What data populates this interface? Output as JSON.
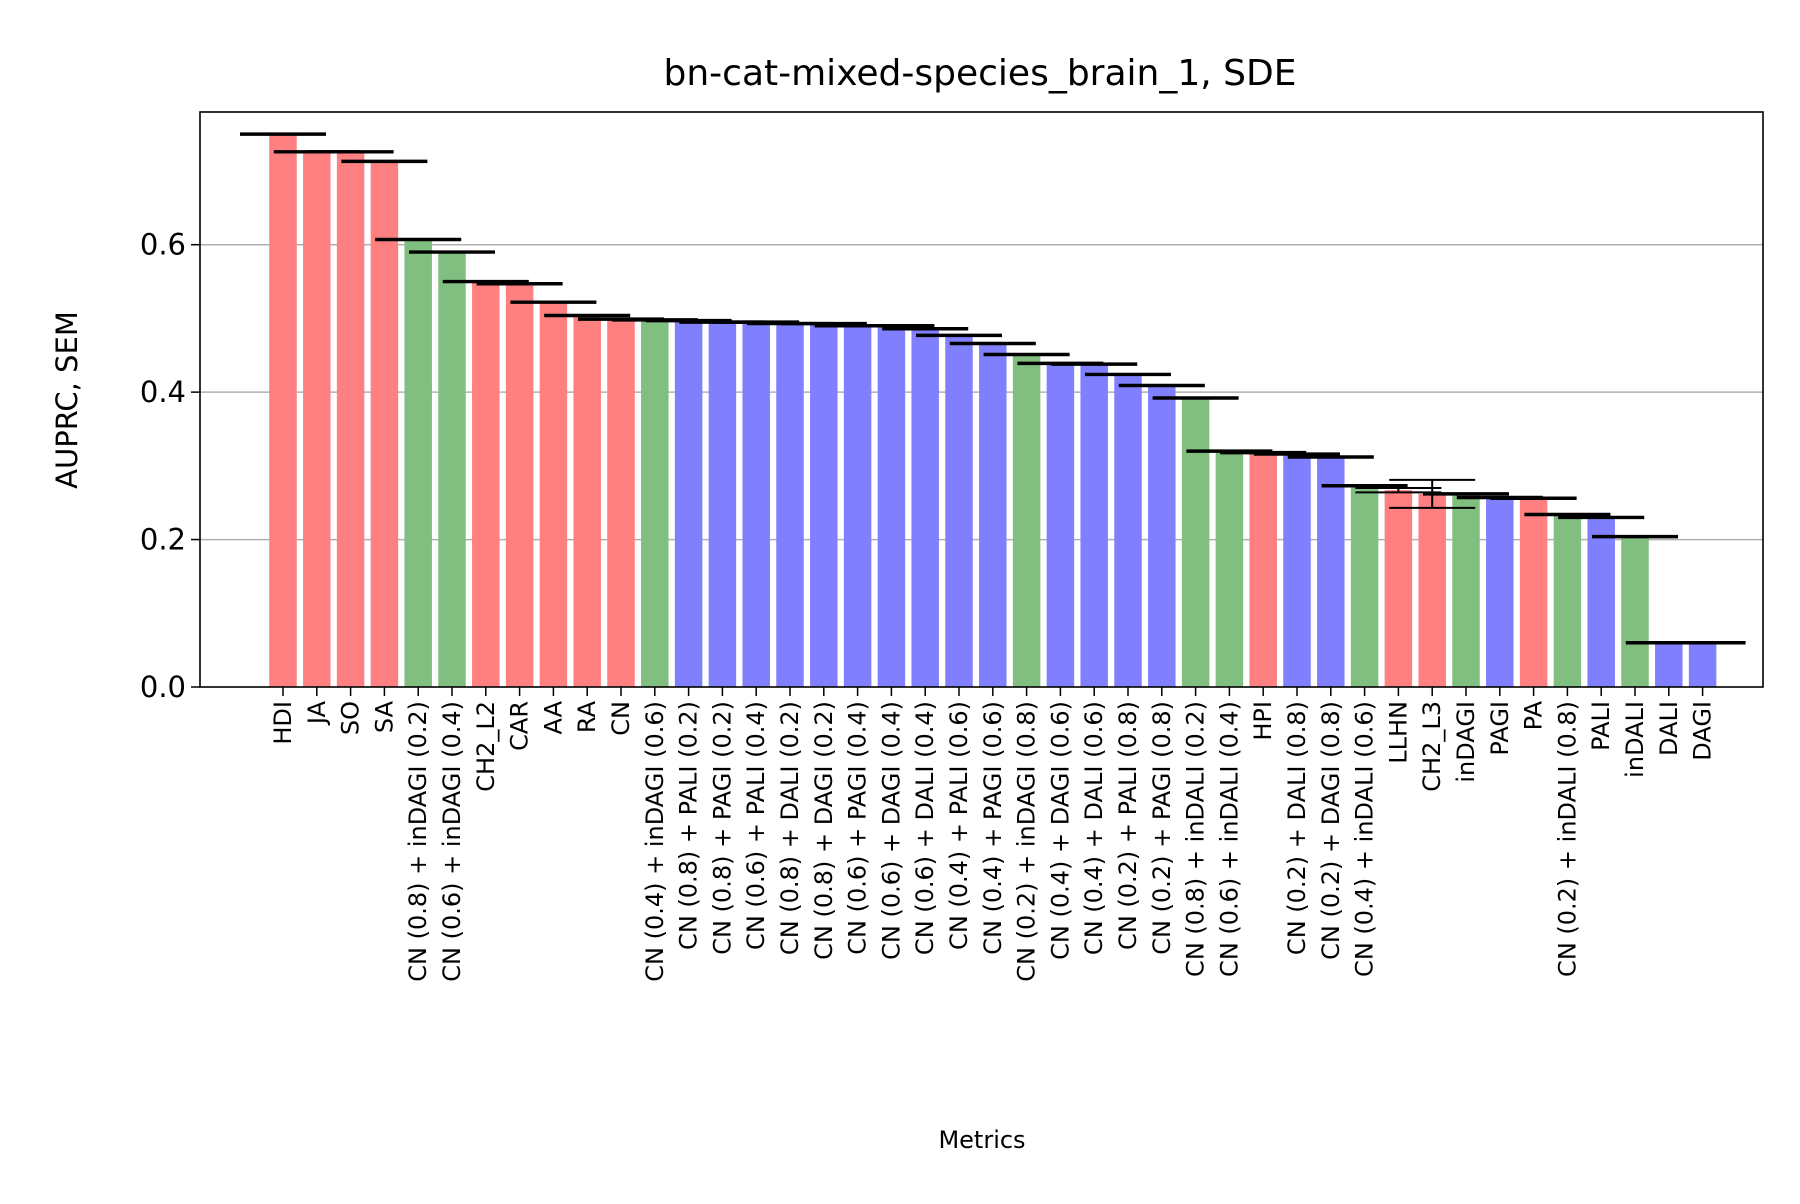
{
  "chart_data": {
    "type": "bar",
    "title": "bn-cat-mixed-species_brain_1, SDE",
    "xlabel": "Metrics",
    "ylabel": "AUPRC, SEM",
    "ylim": [
      0,
      0.78
    ],
    "yticks": [
      0.0,
      0.2,
      0.4,
      0.6
    ],
    "ytick_labels": [
      "0.0",
      "0.2",
      "0.4",
      "0.6"
    ],
    "grid": "y",
    "colors": {
      "red": "#ff8080",
      "green": "#80bf80",
      "blue": "#8080ff",
      "error": "#000000",
      "grid": "#b0b0b0"
    },
    "categories": [
      "HDI",
      "JA",
      "SO",
      "SA",
      "CN (0.8) + inDAGI (0.2)",
      "CN (0.6) + inDAGI (0.4)",
      "CH2_L2",
      "CAR",
      "AA",
      "RA",
      "CN",
      "CN (0.4) + inDAGI (0.6)",
      "CN (0.8) + PALI (0.2)",
      "CN (0.8) + PAGI (0.2)",
      "CN (0.6) + PALI (0.4)",
      "CN (0.8) + DALI (0.2)",
      "CN (0.8) + DAGI (0.2)",
      "CN (0.6) + PAGI (0.4)",
      "CN (0.6) + DAGI (0.4)",
      "CN (0.6) + DALI (0.4)",
      "CN (0.4) + PALI (0.6)",
      "CN (0.4) + PAGI (0.6)",
      "CN (0.2) + inDAGI (0.8)",
      "CN (0.4) + DAGI (0.6)",
      "CN (0.4) + DALI (0.6)",
      "CN (0.2) + PALI (0.8)",
      "CN (0.2) + PAGI (0.8)",
      "CN (0.8) + inDALI (0.2)",
      "CN (0.6) + inDALI (0.4)",
      "HPI",
      "CN (0.2) + DALI (0.8)",
      "CN (0.2) + DAGI (0.8)",
      "CN (0.4) + inDALI (0.6)",
      "LLHN",
      "CH2_L3",
      "inDAGI",
      "PAGI",
      "PA",
      "CN (0.2) + inDALI (0.8)",
      "PALI",
      "inDALI",
      "DALI",
      "DAGI"
    ],
    "values": [
      0.75,
      0.726,
      0.726,
      0.713,
      0.607,
      0.59,
      0.55,
      0.547,
      0.522,
      0.504,
      0.499,
      0.498,
      0.497,
      0.495,
      0.495,
      0.493,
      0.493,
      0.49,
      0.49,
      0.486,
      0.477,
      0.466,
      0.451,
      0.439,
      0.438,
      0.424,
      0.409,
      0.392,
      0.32,
      0.318,
      0.316,
      0.312,
      0.273,
      0.267,
      0.262,
      0.262,
      0.257,
      0.256,
      0.234,
      0.23,
      0.204,
      0.06,
      0.06
    ],
    "errors": [
      0.001,
      0.001,
      0.001,
      0.001,
      0.001,
      0.001,
      0.001,
      0.001,
      0.001,
      0.001,
      0.001,
      0.001,
      0.001,
      0.001,
      0.001,
      0.001,
      0.001,
      0.001,
      0.001,
      0.001,
      0.001,
      0.001,
      0.001,
      0.001,
      0.001,
      0.001,
      0.001,
      0.001,
      0.001,
      0.001,
      0.001,
      0.001,
      0.001,
      0.003,
      0.019,
      0.001,
      0.001,
      0.001,
      0.001,
      0.001,
      0.001,
      0.001,
      0.001
    ],
    "bar_colors": [
      "red",
      "red",
      "red",
      "red",
      "green",
      "green",
      "red",
      "red",
      "red",
      "red",
      "red",
      "green",
      "blue",
      "blue",
      "blue",
      "blue",
      "blue",
      "blue",
      "blue",
      "blue",
      "blue",
      "blue",
      "green",
      "blue",
      "blue",
      "blue",
      "blue",
      "green",
      "green",
      "red",
      "blue",
      "blue",
      "green",
      "red",
      "red",
      "green",
      "blue",
      "red",
      "green",
      "blue",
      "green",
      "blue",
      "blue"
    ]
  }
}
